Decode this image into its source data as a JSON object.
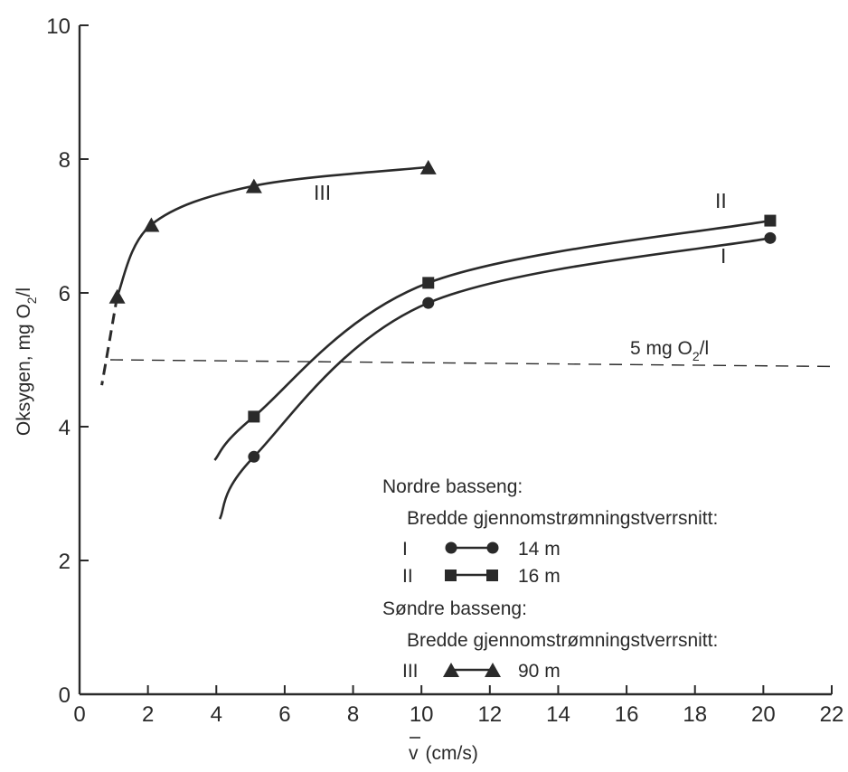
{
  "chart_data": {
    "type": "line",
    "xlabel_prefix": "v",
    "xlabel": "(cm/s)",
    "ylabel": "Oksygen, mg O",
    "ylabel_sub": "2",
    "ylabel_suffix": "/l",
    "xlim": [
      0,
      22
    ],
    "ylim": [
      0,
      10
    ],
    "x_ticks": [
      "0",
      "2",
      "4",
      "6",
      "8",
      "10",
      "12",
      "14",
      "16",
      "18",
      "20",
      "22"
    ],
    "y_ticks": [
      "0",
      "2",
      "4",
      "6",
      "8",
      "10"
    ],
    "grid": false,
    "series": [
      {
        "name": "I",
        "marker": "circle",
        "x": [
          5.1,
          10.2,
          20.2
        ],
        "y": [
          3.55,
          5.85,
          6.82
        ]
      },
      {
        "name": "II",
        "marker": "square",
        "x": [
          5.1,
          10.2,
          20.2
        ],
        "y": [
          4.15,
          6.15,
          7.08
        ]
      },
      {
        "name": "III",
        "marker": "triangle",
        "x": [
          1.1,
          2.1,
          5.1,
          10.2
        ],
        "y": [
          5.95,
          7.02,
          7.6,
          7.88
        ]
      }
    ],
    "reference_line": {
      "y": 4.95,
      "label": "5 mg O",
      "label_sub": "2",
      "label_suffix": "/l"
    },
    "legend": {
      "nordre_title": "Nordre basseng:",
      "nordre_subtitle": "Bredde gjennomstrømningstverrsnitt:",
      "entries_nordre": [
        {
          "numeral": "I",
          "marker": "circle",
          "label": "14 m"
        },
        {
          "numeral": "II",
          "marker": "square",
          "label": "16 m"
        }
      ],
      "sondre_title": "Søndre basseng:",
      "sondre_subtitle": "Bredde gjennomstrømningstverrsnitt:",
      "entries_sondre": [
        {
          "numeral": "III",
          "marker": "triangle",
          "label": "90 m"
        }
      ]
    },
    "colors": {
      "ink": "#2a2a2a"
    }
  }
}
